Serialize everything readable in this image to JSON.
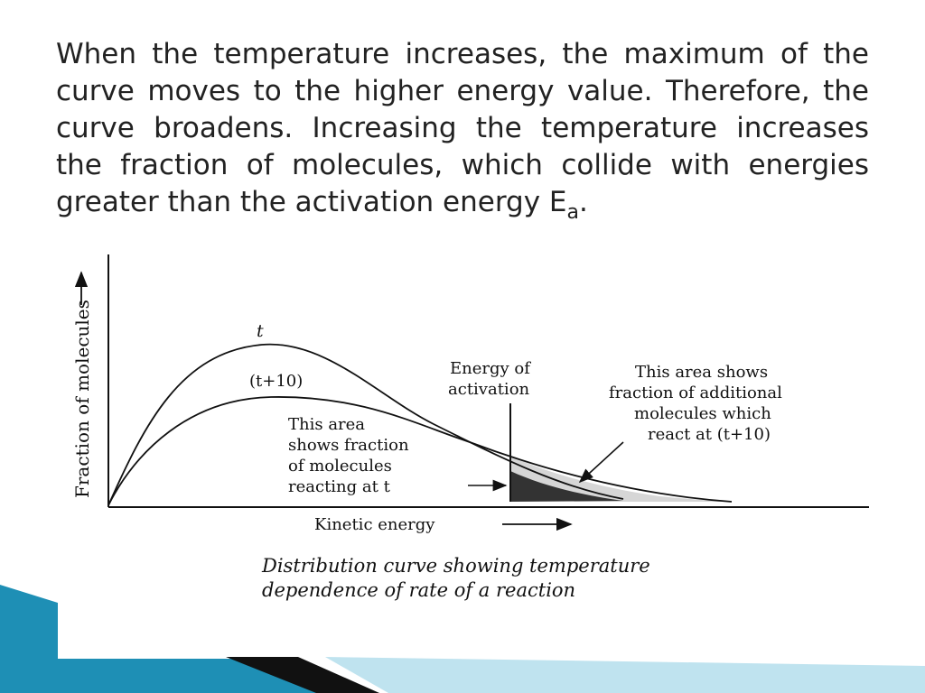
{
  "slide": {
    "paragraph": "When the temperature increases, the maximum of the curve moves to the higher energy value. Therefore, the curve broadens. Increasing the temperature increases the fraction of molecules, which collide with energies greater than the activation energy E",
    "subscript": "a",
    "end_punct": "."
  },
  "figure": {
    "y_axis_label": "Fraction of molecules",
    "x_axis_label": "Kinetic energy",
    "curve_t_label": "t",
    "curve_t10_label": "(t+10)",
    "activation_label_line1": "Energy of",
    "activation_label_line2": "activation",
    "area_t_lines": [
      "This area",
      "shows fraction",
      "of molecules",
      "reacting at t"
    ],
    "area_t10_lines": [
      "This area shows",
      "fraction of additional",
      "molecules which",
      "react at (t+10)"
    ],
    "caption_lines": [
      "Distribution curve showing temperature",
      "dependence of rate of a reaction"
    ]
  },
  "colors": {
    "dark_area": "#333333",
    "light_area": "#d6d6d6",
    "decor_teal": "#1e8fb5",
    "decor_light": "#bfe3ef"
  }
}
